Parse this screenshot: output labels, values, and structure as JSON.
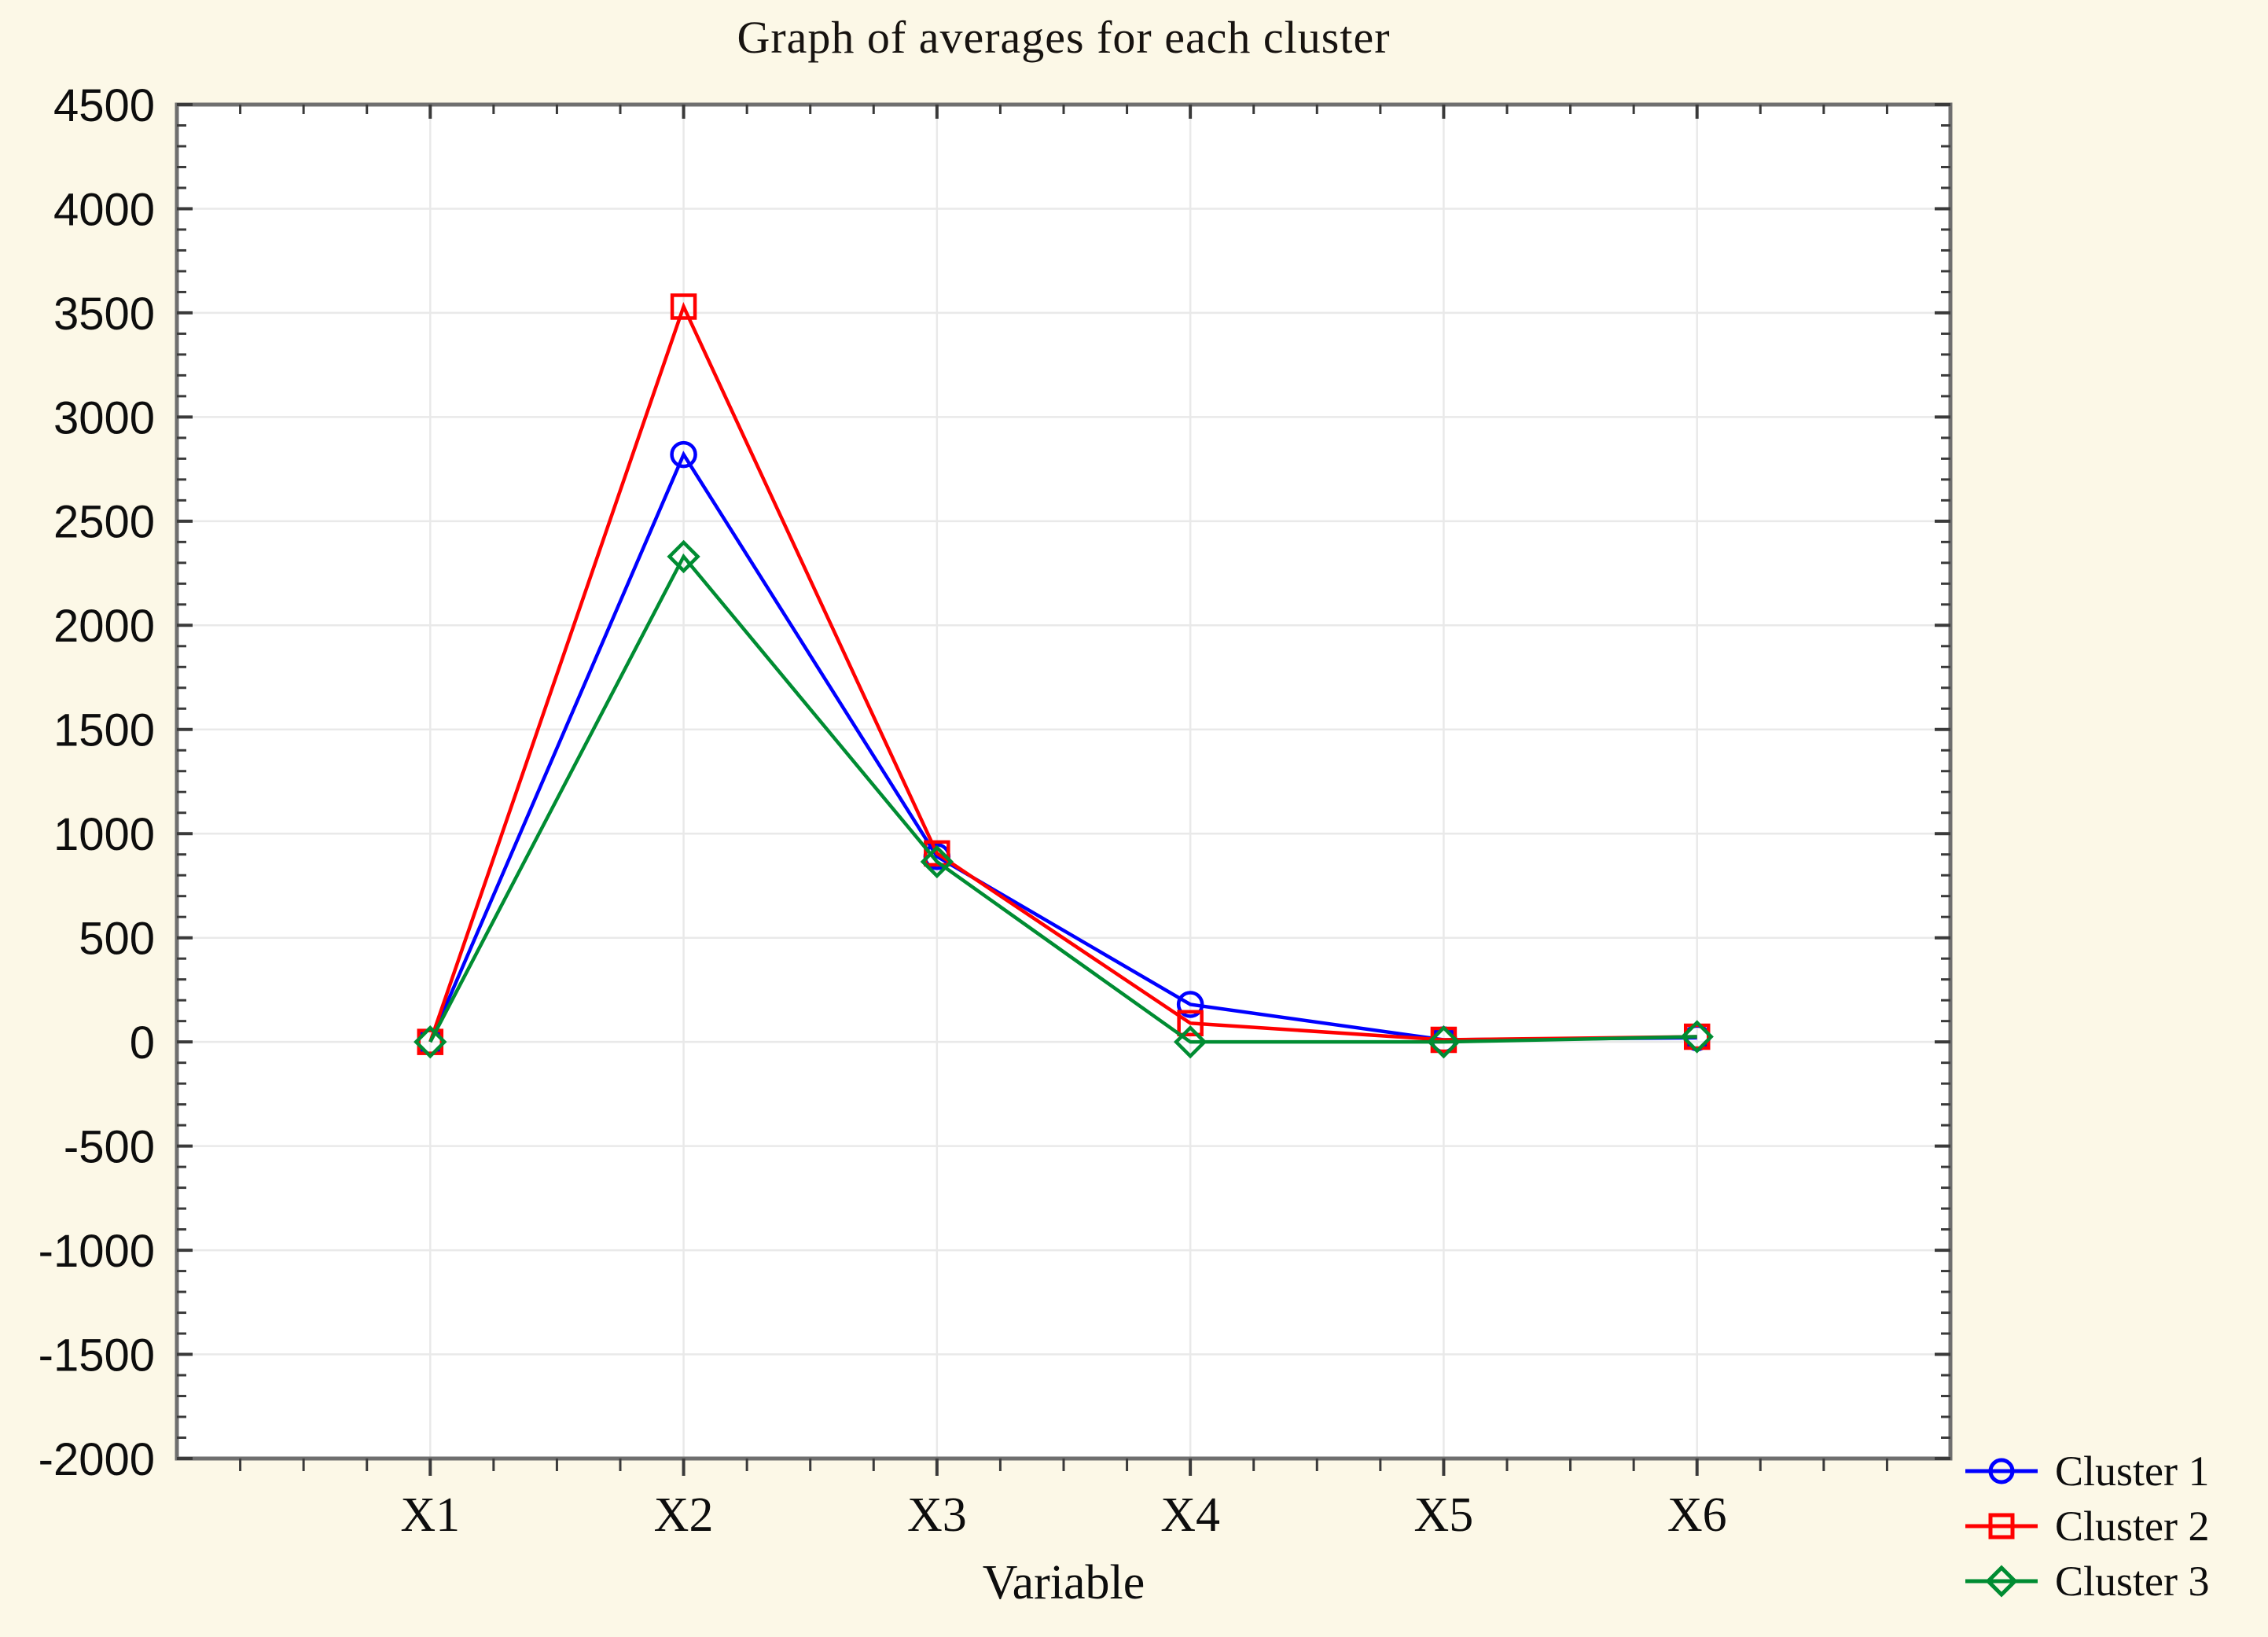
{
  "chart_data": {
    "type": "line",
    "title": "Graph of averages for each cluster",
    "xlabel": "Variable",
    "ylabel": "",
    "categories": [
      "X1",
      "X2",
      "X3",
      "X4",
      "X5",
      "X6"
    ],
    "series": [
      {
        "name": "Cluster 1",
        "color": "#0000FF",
        "marker": "circle",
        "values": [
          0,
          2820,
          890,
          180,
          10,
          20
        ]
      },
      {
        "name": "Cluster 2",
        "color": "#FF0000",
        "marker": "square",
        "values": [
          0,
          3530,
          905,
          90,
          10,
          25
        ]
      },
      {
        "name": "Cluster 3",
        "color": "#008C32",
        "marker": "diamond",
        "values": [
          0,
          2330,
          865,
          0,
          0,
          25
        ]
      }
    ],
    "ylim": [
      -2000,
      4500
    ],
    "ytick_step": 500,
    "y_minor_step": 100,
    "x_minor_divisions": 4,
    "grid": true,
    "legend_position": "bottom-right",
    "legend_labels": [
      "Cluster 1",
      "Cluster 2",
      "Cluster 3"
    ]
  },
  "colors": {
    "page_background": "#FCF8E7",
    "plot_background": "#FFFFFF",
    "frame": "#6F6F6F",
    "gridline": "#E9E9E9",
    "tick": "#3A3A3A",
    "text": "#0d0d0d",
    "cluster1": "#0000FF",
    "cluster2": "#FF0000",
    "cluster3": "#008C32"
  }
}
